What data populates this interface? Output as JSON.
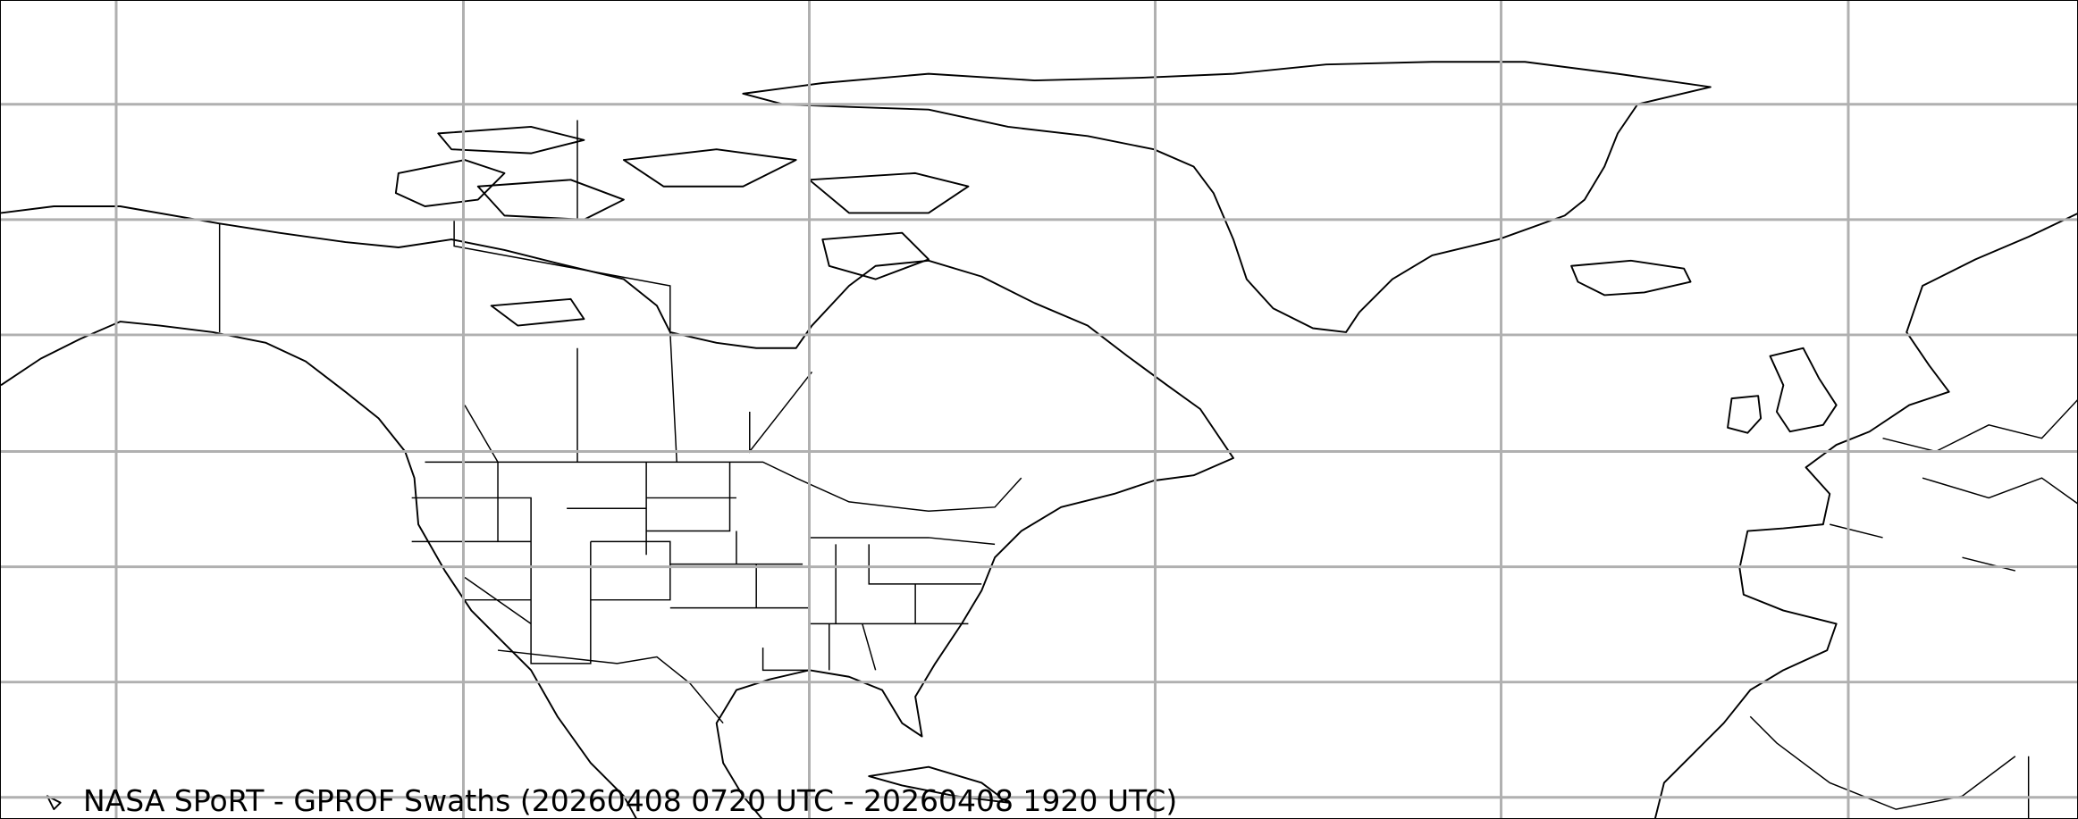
{
  "title": "NASA SPoRT - GPROF Swaths (20260408 0720 UTC - 20260408 1920 UTC)",
  "colors": {
    "background": "#ffffff",
    "coastline": "#000000",
    "gridline": "#b0b0b0"
  },
  "map": {
    "projection": "plate-carree",
    "features": [
      "coastlines",
      "country-borders",
      "state-borders",
      "graticule"
    ]
  }
}
